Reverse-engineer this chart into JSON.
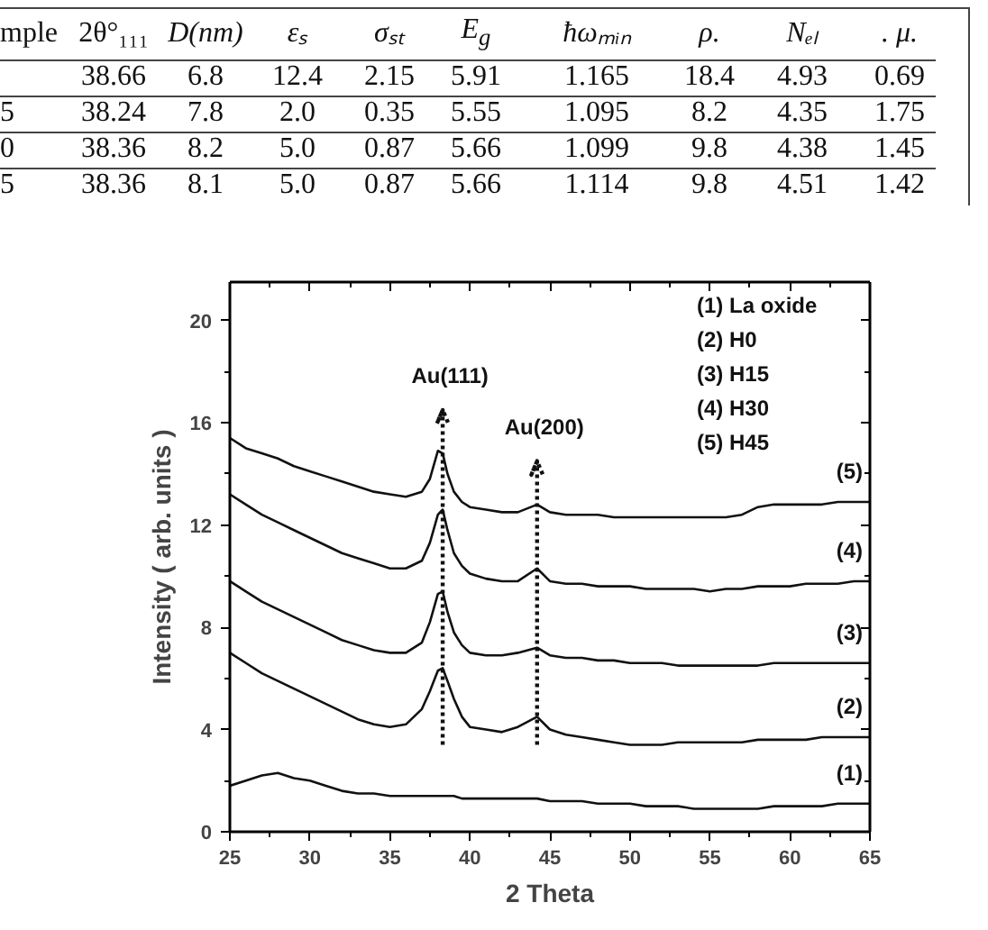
{
  "chart_data": [
    {
      "type": "other",
      "categories": [
        "mple",
        "2θ°₁₁₁",
        "D(nm)",
        "εₛ",
        "σₛₜ",
        "E$_{g}$",
        "ħωₘᵢₙ",
        "ρ.",
        "Nₑₗ",
        ". μ."
      ],
      "cells": [
        [
          null,
          "38.66",
          "6.8",
          "12.4",
          "2.15",
          "5.91",
          "1.165",
          "18.4",
          "4.93",
          "0.69"
        ],
        [
          "5",
          "38.24",
          "7.8",
          "2.0",
          "0.35",
          "5.55",
          "1.095",
          "8.2",
          "4.35",
          "1.75"
        ],
        [
          "0",
          "38.36",
          "8.2",
          "5.0",
          "0.87",
          "5.66",
          "1.099",
          "9.8",
          "4.38",
          "1.45"
        ],
        [
          "5",
          "38.36",
          "8.1",
          "5.0",
          "0.87",
          "5.66",
          "1.114",
          "9.8",
          "4.51",
          "1.42"
        ]
      ]
    },
    {
      "type": "line",
      "xlabel": "2 Theta",
      "ylabel": "Intensity ( arb. units )",
      "x": [
        25,
        26,
        27,
        28,
        29,
        30,
        31,
        32,
        33,
        34,
        35,
        36,
        37,
        37.5,
        38,
        38.3,
        38.6,
        39,
        39.5,
        40,
        41,
        42,
        43,
        44.2,
        45,
        46,
        47,
        48,
        49,
        50,
        51,
        52,
        53,
        54,
        55,
        56,
        57,
        58,
        59,
        60,
        61,
        62,
        63,
        64,
        65
      ],
      "series": [
        {
          "name": "(1)",
          "color": "#111111",
          "values": [
            1.8,
            2.0,
            2.2,
            2.3,
            2.1,
            2.0,
            1.8,
            1.6,
            1.5,
            1.5,
            1.4,
            1.4,
            1.4,
            1.4,
            1.4,
            1.4,
            1.4,
            1.4,
            1.3,
            1.3,
            1.3,
            1.3,
            1.3,
            1.3,
            1.2,
            1.2,
            1.2,
            1.1,
            1.1,
            1.1,
            1.0,
            1.0,
            1.0,
            0.9,
            0.9,
            0.9,
            0.9,
            0.9,
            1.0,
            1.0,
            1.0,
            1.0,
            1.1,
            1.1,
            1.1
          ]
        },
        {
          "name": "(2)",
          "color": "#111111",
          "values": [
            7.0,
            6.6,
            6.2,
            5.9,
            5.6,
            5.3,
            5.0,
            4.7,
            4.4,
            4.2,
            4.1,
            4.2,
            4.8,
            5.5,
            6.3,
            6.4,
            5.9,
            5.2,
            4.5,
            4.1,
            4.0,
            3.9,
            4.1,
            4.5,
            4.0,
            3.8,
            3.7,
            3.6,
            3.5,
            3.4,
            3.4,
            3.4,
            3.5,
            3.5,
            3.5,
            3.5,
            3.5,
            3.6,
            3.6,
            3.6,
            3.6,
            3.7,
            3.7,
            3.7,
            3.7
          ]
        },
        {
          "name": "(3)",
          "color": "#111111",
          "values": [
            9.8,
            9.4,
            9.0,
            8.7,
            8.4,
            8.1,
            7.8,
            7.5,
            7.3,
            7.1,
            7.0,
            7.0,
            7.4,
            8.2,
            9.3,
            9.4,
            8.6,
            7.8,
            7.3,
            7.0,
            6.9,
            6.9,
            7.0,
            7.2,
            6.9,
            6.8,
            6.8,
            6.7,
            6.7,
            6.6,
            6.6,
            6.6,
            6.5,
            6.5,
            6.5,
            6.5,
            6.5,
            6.5,
            6.6,
            6.6,
            6.6,
            6.6,
            6.6,
            6.6,
            6.6
          ]
        },
        {
          "name": "(4)",
          "color": "#111111",
          "values": [
            13.2,
            12.8,
            12.4,
            12.1,
            11.8,
            11.5,
            11.2,
            10.9,
            10.7,
            10.5,
            10.3,
            10.3,
            10.6,
            11.3,
            12.4,
            12.6,
            11.8,
            10.9,
            10.4,
            10.1,
            9.9,
            9.8,
            9.8,
            10.3,
            9.8,
            9.7,
            9.7,
            9.6,
            9.6,
            9.6,
            9.5,
            9.5,
            9.5,
            9.5,
            9.4,
            9.5,
            9.5,
            9.6,
            9.6,
            9.6,
            9.7,
            9.7,
            9.7,
            9.8,
            9.8
          ]
        },
        {
          "name": "(5)",
          "color": "#111111",
          "values": [
            15.4,
            15.0,
            14.8,
            14.6,
            14.3,
            14.1,
            13.9,
            13.7,
            13.5,
            13.3,
            13.2,
            13.1,
            13.3,
            13.8,
            14.9,
            14.8,
            14.0,
            13.3,
            12.9,
            12.7,
            12.6,
            12.5,
            12.5,
            12.8,
            12.5,
            12.4,
            12.4,
            12.4,
            12.3,
            12.3,
            12.3,
            12.3,
            12.3,
            12.3,
            12.3,
            12.3,
            12.4,
            12.7,
            12.8,
            12.8,
            12.8,
            12.8,
            12.9,
            12.9,
            12.9
          ]
        }
      ],
      "xlim": [
        25,
        65
      ],
      "ylim": [
        0,
        21.5
      ],
      "xticks": [
        25,
        30,
        35,
        40,
        45,
        50,
        55,
        60,
        65
      ],
      "yticks": [
        0,
        4,
        8,
        12,
        16,
        20
      ],
      "annotations": [
        "(1) La oxide",
        "(2) H0",
        "(3) H15",
        "(4) H30",
        "(5) H45"
      ],
      "ref_lines": [
        {
          "axis": "x",
          "value": 38.3,
          "label": "Au(111)",
          "line_style": "dotted"
        },
        {
          "axis": "x",
          "value": 44.2,
          "label": "Au(200)",
          "line_style": "dotted"
        }
      ],
      "grid": false,
      "marker": "none",
      "line_style": "solid"
    }
  ]
}
